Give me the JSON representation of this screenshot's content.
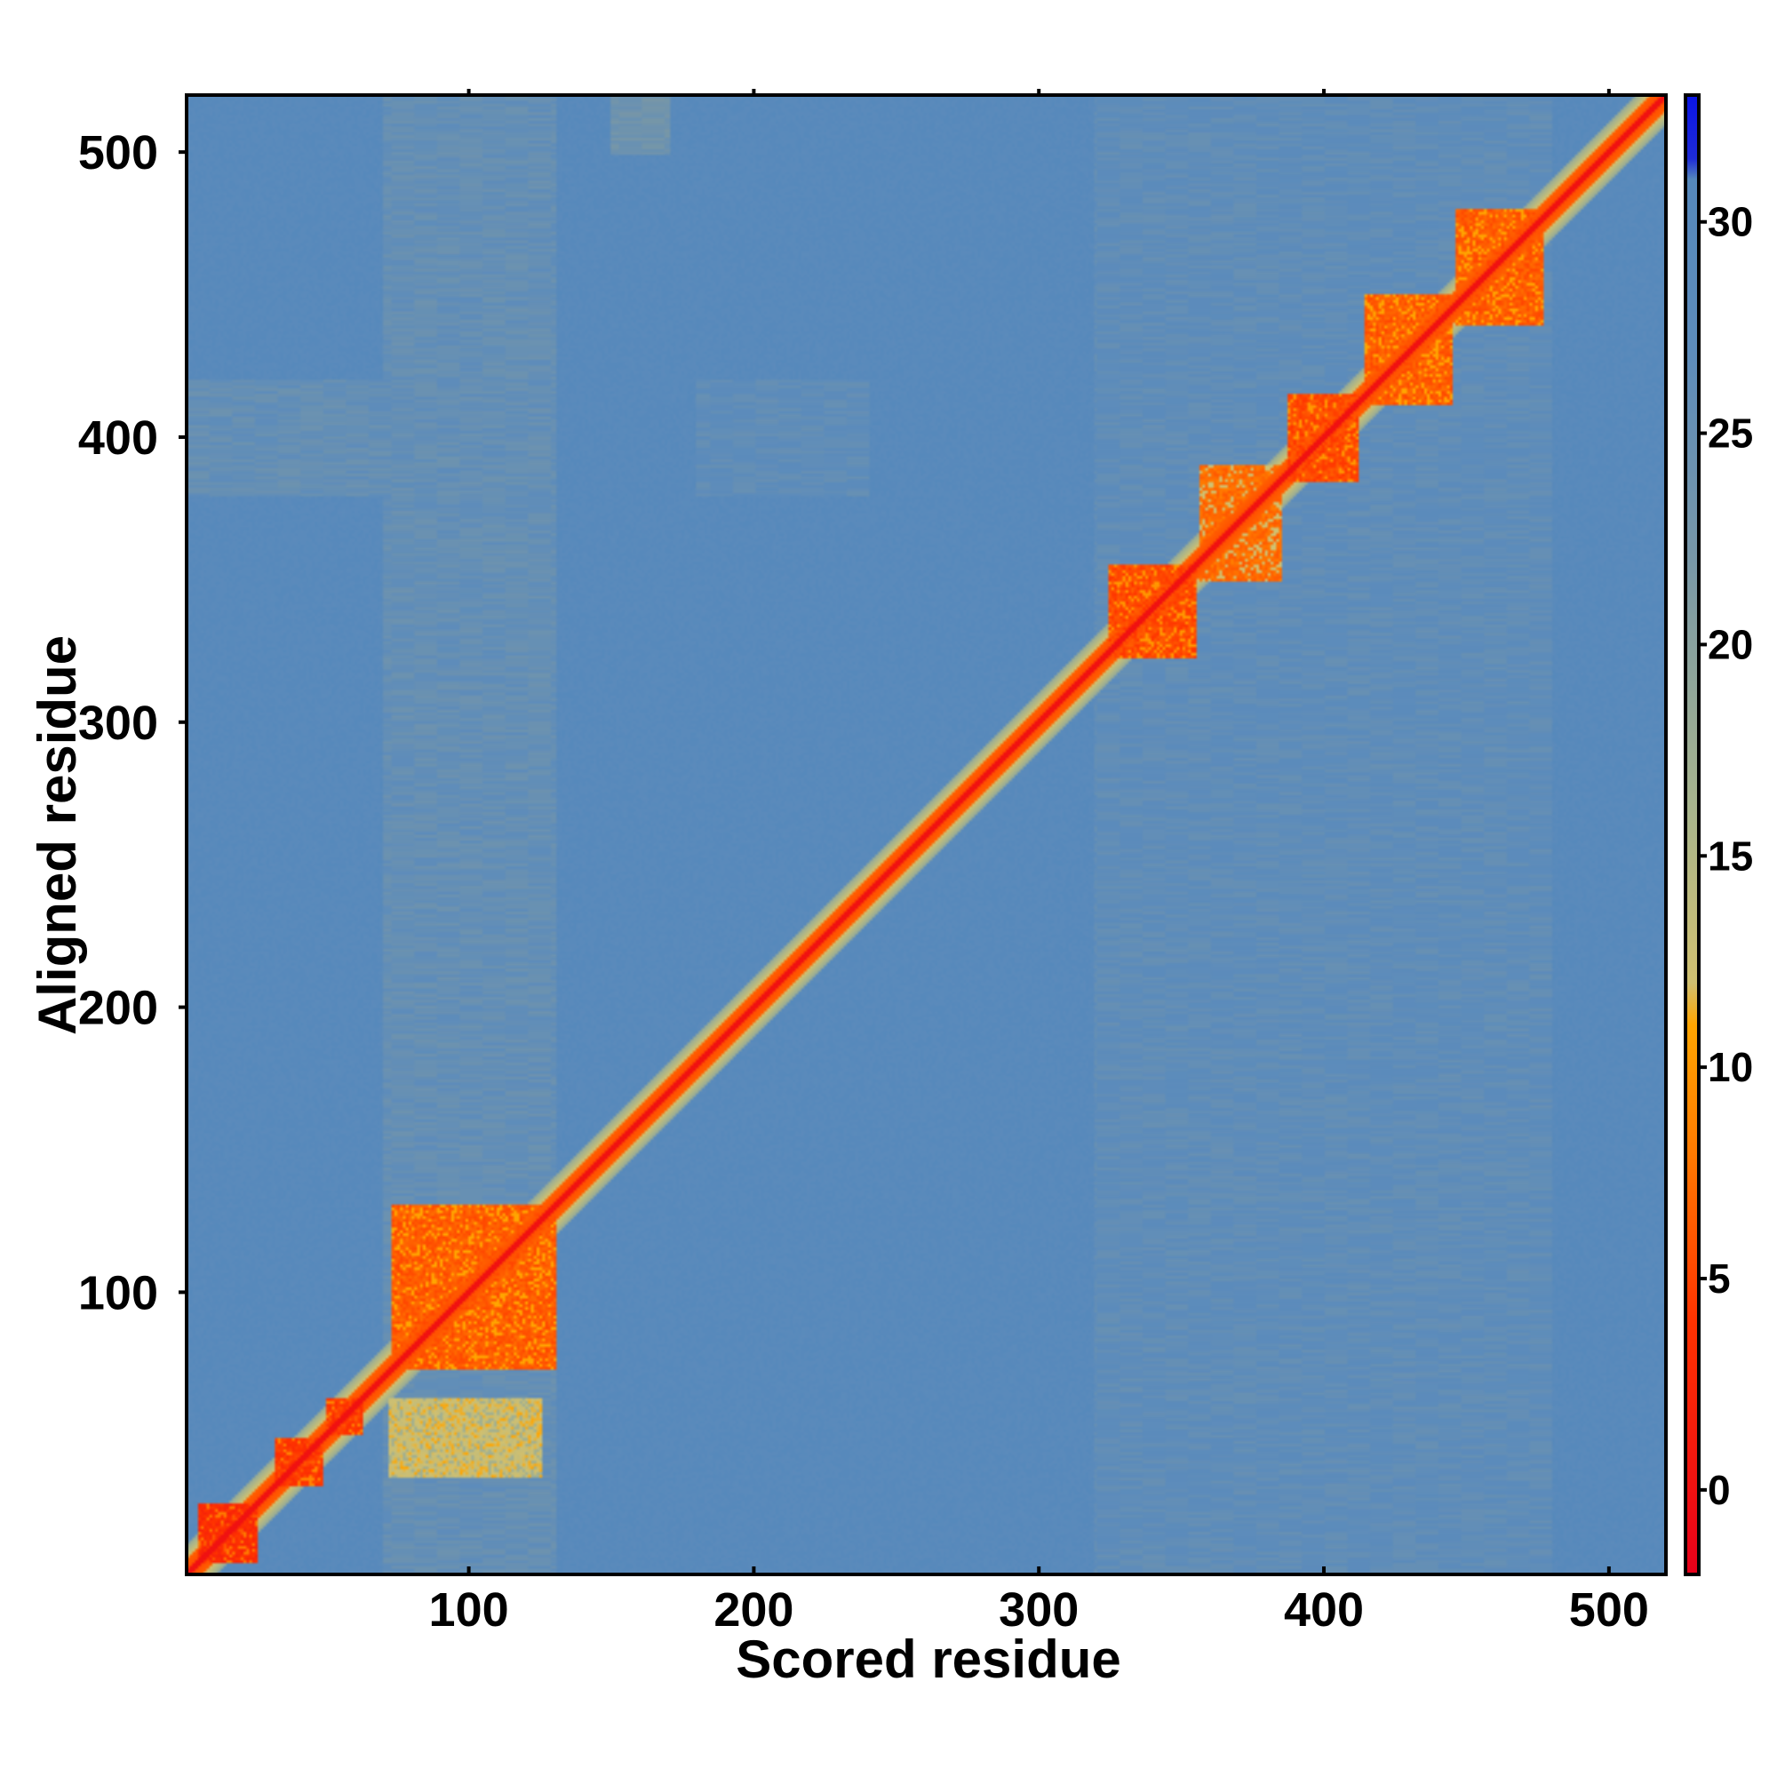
{
  "chart_data": {
    "type": "heatmap",
    "title": "",
    "xlabel": "Scored residue",
    "ylabel": "Aligned residue",
    "xlim": [
      1,
      520
    ],
    "ylim": [
      1,
      520
    ],
    "x_ticks": [
      100,
      200,
      300,
      400,
      500
    ],
    "y_ticks": [
      100,
      200,
      300,
      400,
      500
    ],
    "colorbar": {
      "range": [
        -2,
        33
      ],
      "ticks": [
        0,
        5,
        10,
        15,
        20,
        25,
        30
      ],
      "stops": [
        {
          "value": -2,
          "color": "#e8001a"
        },
        {
          "value": 4,
          "color": "#ff3300"
        },
        {
          "value": 8,
          "color": "#ff7a00"
        },
        {
          "value": 11,
          "color": "#ffa500"
        },
        {
          "value": 12,
          "color": "#d0c070"
        },
        {
          "value": 16,
          "color": "#a9b58c"
        },
        {
          "value": 22,
          "color": "#7897a7"
        },
        {
          "value": 27,
          "color": "#5d8cbb"
        },
        {
          "value": 31,
          "color": "#5588bb"
        },
        {
          "value": 31.5,
          "color": "#1e2bd8"
        },
        {
          "value": 33,
          "color": "#0a14e6"
        }
      ]
    },
    "background_value": 29,
    "diagonal": {
      "center_value": 0,
      "band_value": 5,
      "edge_value": 12
    },
    "blocks": [
      {
        "x": [
          5,
          25
        ],
        "y": [
          5,
          25
        ],
        "value": 2
      },
      {
        "x": [
          32,
          48
        ],
        "y": [
          32,
          48
        ],
        "value": 3
      },
      {
        "x": [
          50,
          62
        ],
        "y": [
          50,
          62
        ],
        "value": 3
      },
      {
        "x": [
          73,
          130
        ],
        "y": [
          73,
          130
        ],
        "value": 5
      },
      {
        "x": [
          72,
          125
        ],
        "y": [
          35,
          62
        ],
        "value": 11
      },
      {
        "x": [
          325,
          355
        ],
        "y": [
          323,
          355
        ],
        "value": 4
      },
      {
        "x": [
          357,
          385
        ],
        "y": [
          350,
          390
        ],
        "value": 6
      },
      {
        "x": [
          388,
          412
        ],
        "y": [
          385,
          415
        ],
        "value": 4
      },
      {
        "x": [
          415,
          445
        ],
        "y": [
          412,
          450
        ],
        "value": 5
      },
      {
        "x": [
          447,
          477
        ],
        "y": [
          440,
          480
        ],
        "value": 5
      }
    ],
    "features": [
      {
        "x": [
          70,
          130
        ],
        "y": [
          1,
          520
        ],
        "value": 24
      },
      {
        "x": [
          320,
          480
        ],
        "y": [
          1,
          520
        ],
        "value": 25
      },
      {
        "x": [
          1,
          130
        ],
        "y": [
          380,
          420
        ],
        "value": 24
      },
      {
        "x": [
          180,
          240
        ],
        "y": [
          380,
          420
        ],
        "value": 25
      },
      {
        "x": [
          150,
          170
        ],
        "y": [
          500,
          520
        ],
        "value": 22
      }
    ]
  }
}
